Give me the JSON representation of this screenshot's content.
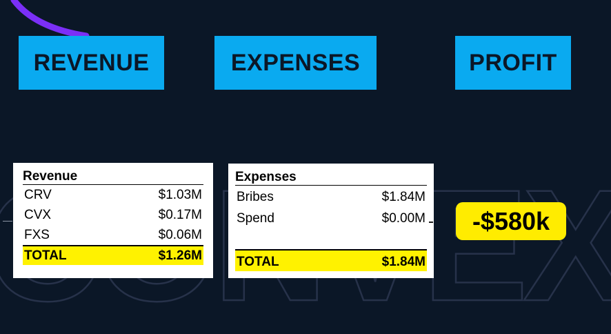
{
  "headers": {
    "revenue": "REVENUE",
    "expenses": "EXPENSES",
    "profit": "PROFIT"
  },
  "revenue_table": {
    "title": "Revenue",
    "rows": [
      {
        "label": "CRV",
        "value": "$1.03M"
      },
      {
        "label": "CVX",
        "value": "$0.17M"
      },
      {
        "label": "FXS",
        "value": "$0.06M"
      }
    ],
    "total_label": "TOTAL",
    "total_value": "$1.26M"
  },
  "expenses_table": {
    "title": "Expenses",
    "rows": [
      {
        "label": "Bribes",
        "value": "$1.84M"
      },
      {
        "label": "Spend",
        "value": "$0.00M"
      }
    ],
    "total_label": "TOTAL",
    "total_value": "$1.84M"
  },
  "profit_value": "-$580k",
  "watermark": "CONVEXA",
  "colors": {
    "background": "#0b1727",
    "header_blue": "#0aaaf0",
    "highlight_yellow": "#fff200",
    "badge_yellow": "#ffec00",
    "arc_purple": "#7b2ff7"
  }
}
